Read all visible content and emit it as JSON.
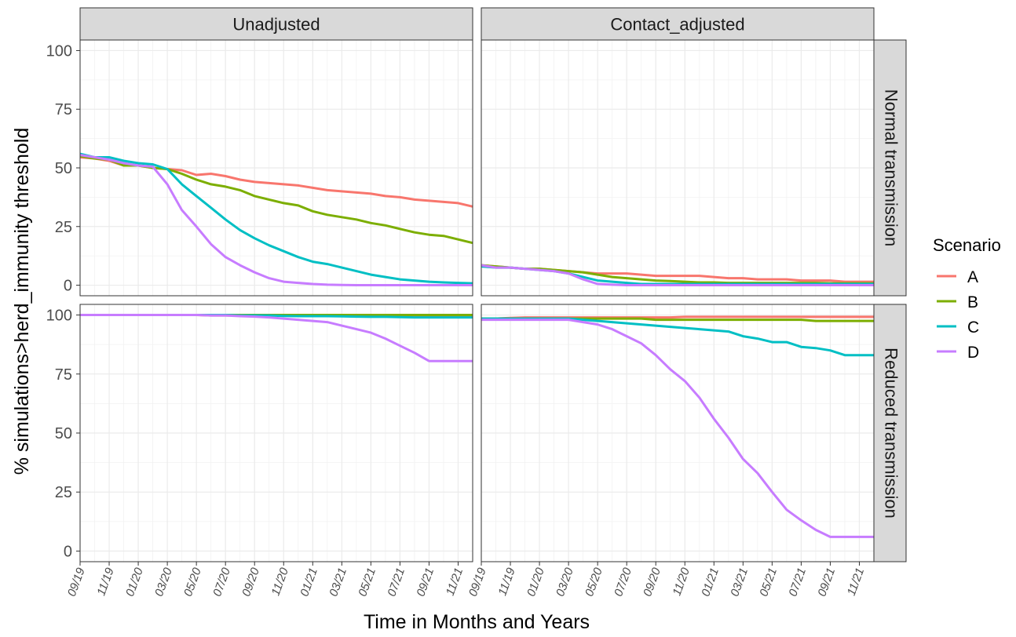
{
  "chart_data": {
    "type": "line",
    "xlabel": "Time in Months and Years",
    "ylabel": "% simulations>herd_immunity threshold",
    "ylim": [
      0,
      100
    ],
    "yticks": [
      0,
      25,
      50,
      75,
      100
    ],
    "x": [
      "09/19",
      "10/19",
      "11/19",
      "12/19",
      "01/20",
      "02/20",
      "03/20",
      "04/20",
      "05/20",
      "06/20",
      "07/20",
      "08/20",
      "09/20",
      "10/20",
      "11/20",
      "12/20",
      "01/21",
      "02/21",
      "03/21",
      "04/21",
      "05/21",
      "06/21",
      "07/21",
      "08/21",
      "09/21",
      "10/21",
      "11/21",
      "12/21"
    ],
    "xtick_labels": [
      "09/19",
      "11/19",
      "01/20",
      "03/20",
      "05/20",
      "07/20",
      "09/20",
      "11/20",
      "01/21",
      "03/21",
      "05/21",
      "07/21",
      "09/21",
      "11/21"
    ],
    "columns": [
      "Unadjusted",
      "Contact_adjusted"
    ],
    "rows": [
      "Normal transmission",
      "Reduced transmission"
    ],
    "legend": {
      "title": "Scenario",
      "position": "right",
      "entries": [
        {
          "label": "A",
          "color": "#F8766D"
        },
        {
          "label": "B",
          "color": "#7CAE00"
        },
        {
          "label": "C",
          "color": "#00BFC4"
        },
        {
          "label": "D",
          "color": "#C77CFF"
        }
      ]
    },
    "grid": true,
    "panels": [
      {
        "column": "Unadjusted",
        "row": "Normal transmission",
        "series": [
          {
            "name": "A",
            "values": [
              54.5,
              54,
              53,
              51,
              51,
              50,
              49.5,
              49,
              47,
              47.5,
              46.5,
              45,
              44,
              43.5,
              43,
              42.5,
              41.5,
              40.5,
              40,
              39.5,
              39,
              38,
              37.5,
              36.5,
              36,
              35.5,
              35,
              33.5
            ]
          },
          {
            "name": "B",
            "values": [
              55,
              54,
              53.5,
              51,
              51,
              50,
              49.5,
              47.5,
              45,
              43,
              42,
              40.5,
              38,
              36.5,
              35,
              34,
              31.5,
              30,
              29,
              28,
              26.5,
              25.5,
              24,
              22.5,
              21.5,
              21,
              19.5,
              18
            ]
          },
          {
            "name": "C",
            "values": [
              56,
              54.5,
              54.5,
              53,
              52,
              51.5,
              49.5,
              43,
              38,
              33,
              28,
              23.5,
              20,
              17,
              14.5,
              12,
              10,
              9,
              7.5,
              6,
              4.5,
              3.5,
              2.5,
              2,
              1.5,
              1.2,
              1,
              0.8
            ]
          },
          {
            "name": "D",
            "values": [
              55.5,
              54.5,
              53.5,
              52,
              51,
              50.5,
              43,
              32,
              25,
              17.5,
              12,
              8.5,
              5.5,
              3,
              1.5,
              1,
              0.5,
              0.2,
              0.1,
              0,
              0,
              0,
              0,
              0,
              0,
              0,
              0,
              0
            ]
          }
        ]
      },
      {
        "column": "Contact_adjusted",
        "row": "Normal transmission",
        "series": [
          {
            "name": "A",
            "values": [
              8.5,
              8,
              7.5,
              7,
              7,
              6.5,
              6,
              5.5,
              5,
              5,
              5,
              4.5,
              4,
              4,
              4,
              4,
              3.5,
              3,
              3,
              2.5,
              2.5,
              2.5,
              2,
              2,
              2,
              1.5,
              1.5,
              1.5
            ]
          },
          {
            "name": "B",
            "values": [
              8.5,
              8,
              7.5,
              7,
              7,
              6.5,
              6,
              5.5,
              4.5,
              3.5,
              3,
              2.5,
              2,
              1.8,
              1.5,
              1.2,
              1.2,
              1,
              1,
              1,
              1,
              1,
              1,
              1,
              0.8,
              0.8,
              0.8,
              0.8
            ]
          },
          {
            "name": "C",
            "values": [
              8,
              7.5,
              7.5,
              7,
              6.5,
              6,
              5,
              3.5,
              2,
              1.5,
              1,
              0.5,
              0.5,
              0.5,
              0.5,
              0.5,
              0.5,
              0.5,
              0.5,
              0.5,
              0.5,
              0.5,
              0.5,
              0.5,
              0.5,
              0.5,
              0.5,
              0.5
            ]
          },
          {
            "name": "D",
            "values": [
              8.5,
              7.5,
              7.5,
              7,
              6.5,
              6,
              5,
              2.5,
              0.5,
              0.2,
              0,
              0,
              0,
              0,
              0,
              0,
              0,
              0,
              0,
              0,
              0,
              0,
              0,
              0,
              0,
              0,
              0,
              0
            ]
          }
        ]
      },
      {
        "column": "Unadjusted",
        "row": "Reduced transmission",
        "series": [
          {
            "name": "A",
            "values": [
              100,
              100,
              100,
              100,
              100,
              100,
              100,
              100,
              100,
              99.8,
              99.8,
              99.8,
              99.8,
              99.8,
              99.8,
              99.8,
              99.8,
              99.8,
              99.8,
              99.8,
              99.8,
              99.8,
              99.8,
              99.8,
              99.8,
              99.8,
              99.8,
              99.8
            ]
          },
          {
            "name": "B",
            "values": [
              100,
              100,
              100,
              100,
              100,
              100,
              100,
              100,
              100,
              100,
              100,
              100,
              100,
              100,
              100,
              100,
              100,
              100,
              100,
              100,
              100,
              100,
              100,
              100,
              100,
              100,
              100,
              100
            ]
          },
          {
            "name": "C",
            "values": [
              100,
              100,
              100,
              100,
              100,
              100,
              100,
              100,
              100,
              100,
              100,
              99.8,
              99.8,
              99.8,
              99.6,
              99.5,
              99.5,
              99.5,
              99.4,
              99.3,
              99.2,
              99.2,
              99.1,
              99.0,
              99.0,
              99.0,
              99.0,
              99.0
            ]
          },
          {
            "name": "D",
            "values": [
              100,
              100,
              100,
              100,
              100,
              100,
              100,
              100,
              100,
              99.8,
              99.8,
              99.5,
              99.3,
              99,
              98.5,
              98,
              97.5,
              97,
              95.5,
              94,
              92.5,
              90,
              87,
              84,
              80.5,
              80.5,
              80.5,
              80.5
            ]
          }
        ]
      },
      {
        "column": "Contact_adjusted",
        "row": "Reduced transmission",
        "series": [
          {
            "name": "A",
            "values": [
              98.5,
              98.5,
              98.8,
              99,
              99,
              99,
              99,
              99,
              99,
              99,
              99,
              99,
              99,
              99,
              99.2,
              99.2,
              99.2,
              99.2,
              99.2,
              99.2,
              99.2,
              99.2,
              99.2,
              99.2,
              99.2,
              99.2,
              99.2,
              99.2
            ]
          },
          {
            "name": "B",
            "values": [
              98.5,
              98.5,
              98.5,
              98.5,
              98.5,
              98.5,
              98.5,
              98.5,
              98.5,
              98.5,
              98.5,
              98.5,
              98,
              98,
              98,
              98,
              98,
              98,
              98,
              98,
              98,
              98,
              98,
              97.5,
              97.5,
              97.5,
              97.5,
              97.5
            ]
          },
          {
            "name": "C",
            "values": [
              98.5,
              98.5,
              98.5,
              98.5,
              98.5,
              98.5,
              98.5,
              98,
              97.5,
              97,
              96.5,
              96,
              95.5,
              95,
              94.5,
              94,
              93.5,
              93,
              91,
              90,
              88.5,
              88.5,
              86.5,
              86,
              85,
              83,
              83,
              83
            ]
          },
          {
            "name": "D",
            "values": [
              98,
              98,
              98,
              98,
              98,
              98,
              98,
              97,
              96,
              94,
              91,
              88,
              83,
              77,
              72,
              65,
              56,
              48,
              39,
              33,
              25,
              17.5,
              13,
              9,
              6,
              6,
              6,
              6
            ]
          }
        ]
      }
    ]
  }
}
